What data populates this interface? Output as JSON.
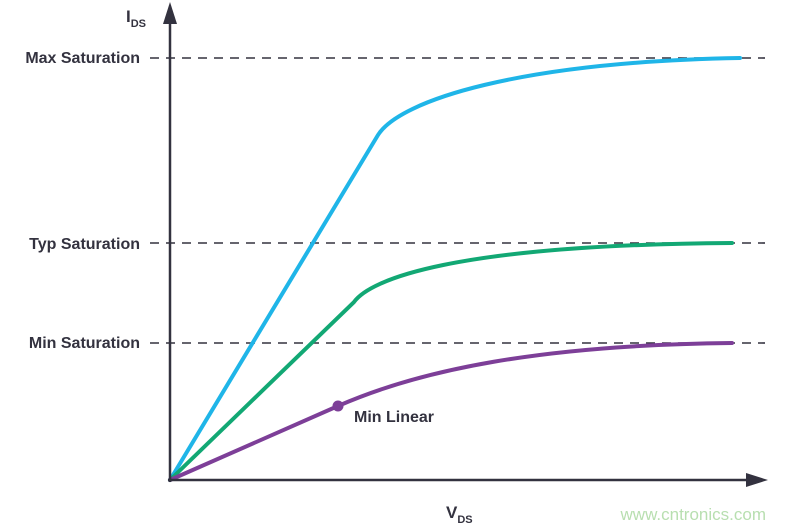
{
  "axes": {
    "y_label": "I",
    "y_sub": "DS",
    "x_label": "V",
    "x_sub": "DS"
  },
  "levels": [
    {
      "label": "Max Saturation"
    },
    {
      "label": "Typ Saturation"
    },
    {
      "label": "Min Saturation"
    }
  ],
  "curves": [
    {
      "id": "max",
      "color": "#1fb5e8"
    },
    {
      "id": "typ",
      "color": "#12a874"
    },
    {
      "id": "min",
      "color": "#7d3f98"
    }
  ],
  "annotation": {
    "label": "Min Linear"
  },
  "watermark": "www.cntronics.com",
  "axis_color": "#33323f"
}
